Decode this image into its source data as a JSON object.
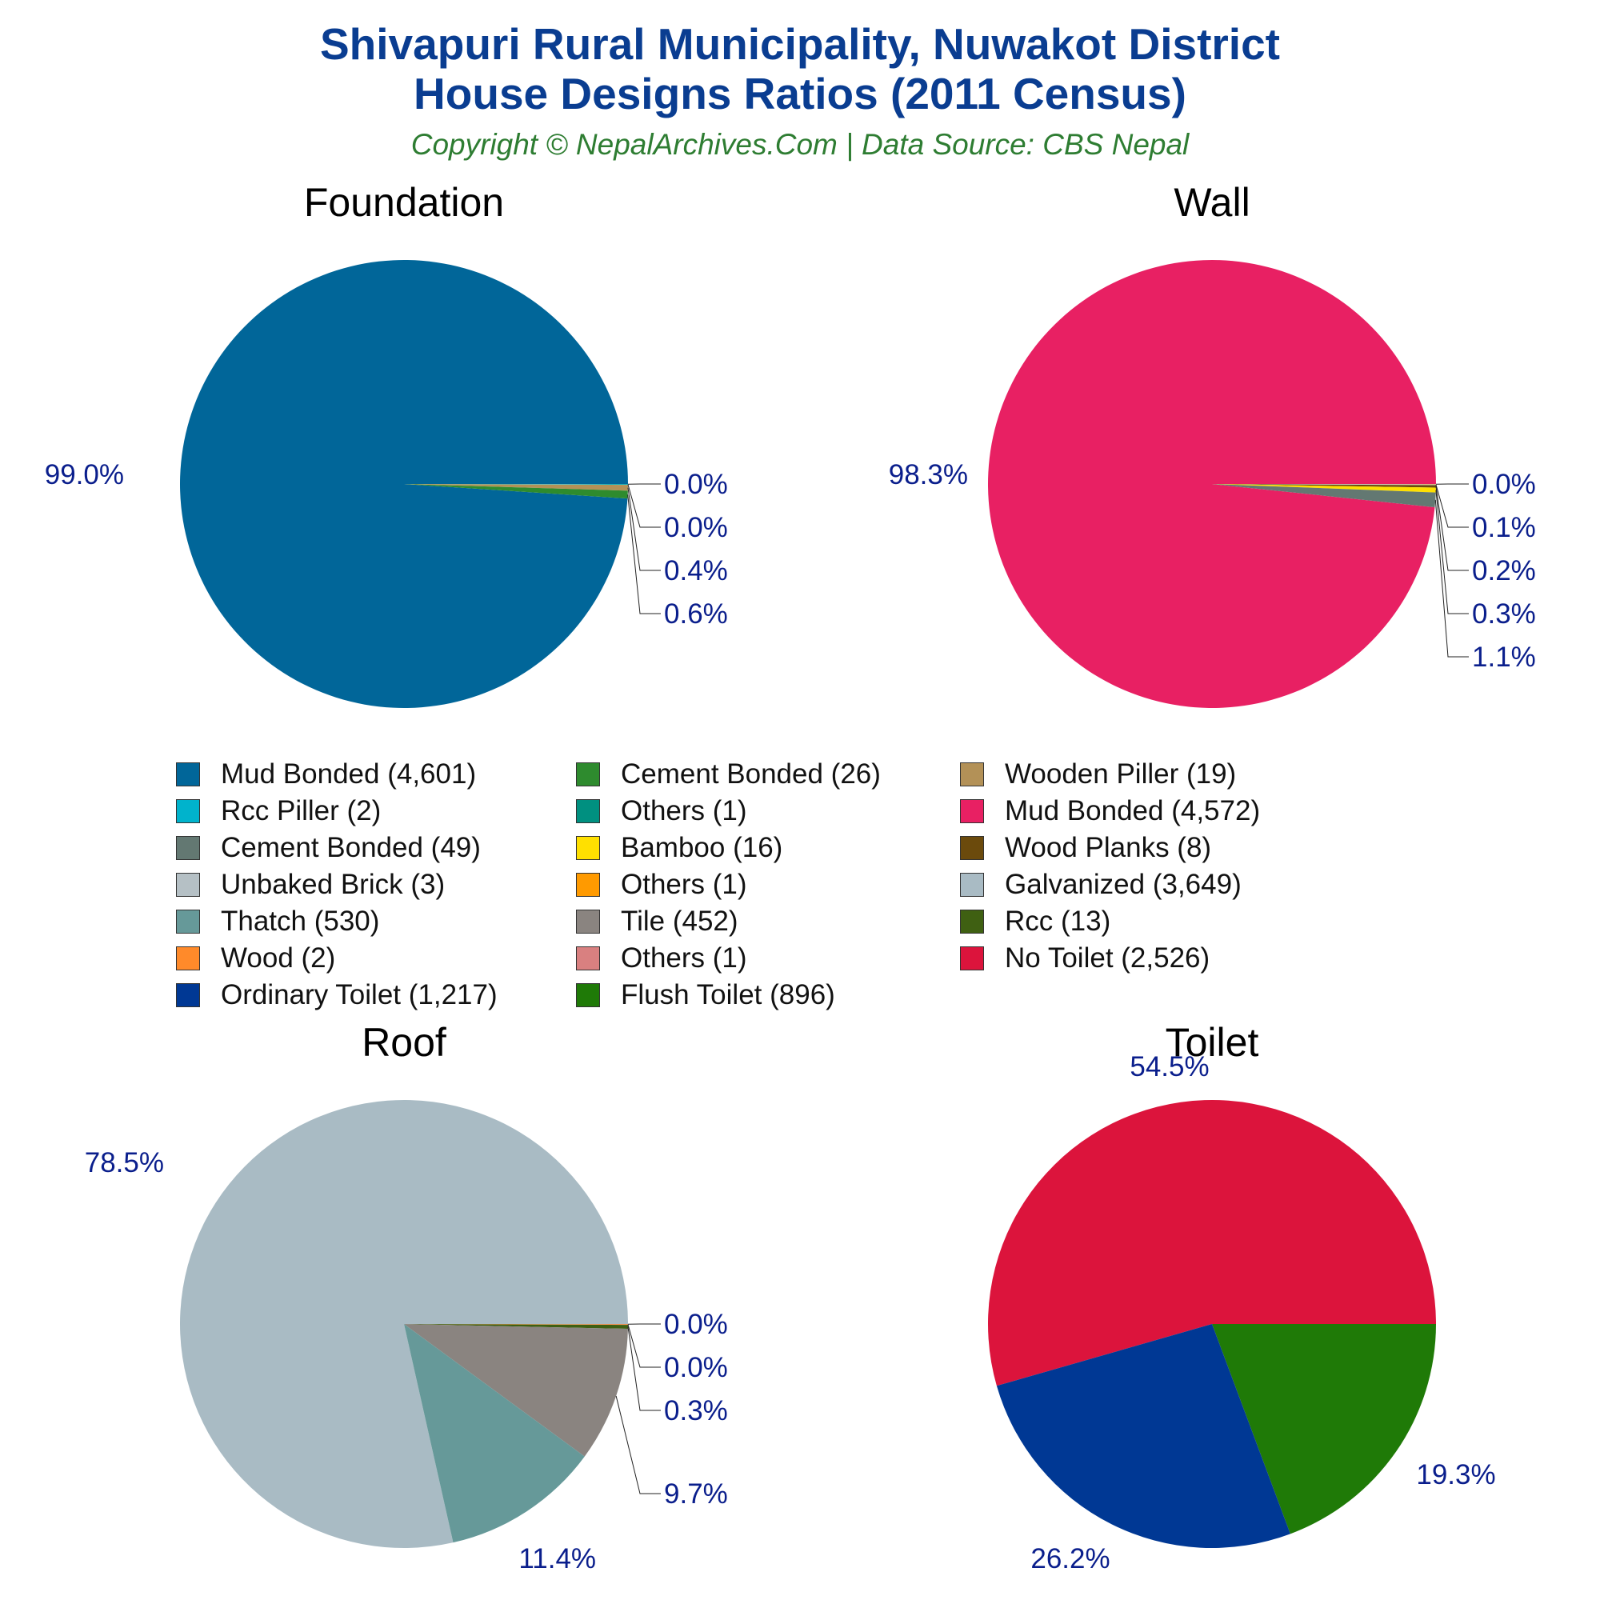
{
  "header": {
    "title_line1": "Shivapuri Rural Municipality, Nuwakot District",
    "title_line2": "House Designs Ratios (2011 Census)",
    "subtitle": "Copyright © NepalArchives.Com | Data Source: CBS Nepal"
  },
  "legend": [
    {
      "label": "Mud Bonded (4,601)",
      "color": "#016699"
    },
    {
      "label": "Cement Bonded (26)",
      "color": "#2e8b2e"
    },
    {
      "label": "Wooden Piller (19)",
      "color": "#b39157"
    },
    {
      "label": "Rcc Piller (2)",
      "color": "#00b3cc"
    },
    {
      "label": "Others (1)",
      "color": "#009080"
    },
    {
      "label": "Mud Bonded (4,572)",
      "color": "#e82063"
    },
    {
      "label": "Cement Bonded (49)",
      "color": "#637872"
    },
    {
      "label": "Bamboo (16)",
      "color": "#ffe000"
    },
    {
      "label": "Wood Planks (8)",
      "color": "#6b4a0c"
    },
    {
      "label": "Unbaked Brick (3)",
      "color": "#b5c0c5"
    },
    {
      "label": "Others (1)",
      "color": "#ff9a00"
    },
    {
      "label": "Galvanized (3,649)",
      "color": "#a9bbc4"
    },
    {
      "label": "Thatch (530)",
      "color": "#669999"
    },
    {
      "label": "Tile (452)",
      "color": "#8a8480"
    },
    {
      "label": "Rcc (13)",
      "color": "#3f6012"
    },
    {
      "label": "Wood (2)",
      "color": "#ff8a2a"
    },
    {
      "label": "Others (1)",
      "color": "#d98080"
    },
    {
      "label": "No Toilet (2,526)",
      "color": "#dc143c"
    },
    {
      "label": "Ordinary Toilet (1,217)",
      "color": "#003894"
    },
    {
      "label": "Flush Toilet (896)",
      "color": "#1f7a07"
    }
  ],
  "chart_data": [
    {
      "type": "pie",
      "title": "Foundation",
      "slices": [
        {
          "label": "Mud Bonded",
          "value": 4601,
          "percent_label": "99.0%",
          "color": "#016699"
        },
        {
          "label": "Cement Bonded",
          "value": 26,
          "percent_label": "0.6%",
          "color": "#2e8b2e"
        },
        {
          "label": "Wooden Piller",
          "value": 19,
          "percent_label": "0.4%",
          "color": "#b39157"
        },
        {
          "label": "Rcc Piller",
          "value": 2,
          "percent_label": "0.0%",
          "color": "#00b3cc"
        },
        {
          "label": "Others",
          "value": 1,
          "percent_label": "0.0%",
          "color": "#009080"
        }
      ]
    },
    {
      "type": "pie",
      "title": "Wall",
      "slices": [
        {
          "label": "Mud Bonded",
          "value": 4572,
          "percent_label": "98.3%",
          "color": "#e82063"
        },
        {
          "label": "Cement Bonded",
          "value": 49,
          "percent_label": "1.1%",
          "color": "#637872"
        },
        {
          "label": "Bamboo",
          "value": 16,
          "percent_label": "0.3%",
          "color": "#ffe000"
        },
        {
          "label": "Wood Planks",
          "value": 8,
          "percent_label": "0.2%",
          "color": "#6b4a0c"
        },
        {
          "label": "Unbaked Brick",
          "value": 3,
          "percent_label": "0.1%",
          "color": "#b5c0c5"
        },
        {
          "label": "Others",
          "value": 1,
          "percent_label": "0.0%",
          "color": "#ff9a00"
        }
      ]
    },
    {
      "type": "pie",
      "title": "Roof",
      "slices": [
        {
          "label": "Galvanized",
          "value": 3649,
          "percent_label": "78.5%",
          "color": "#a9bbc4"
        },
        {
          "label": "Thatch",
          "value": 530,
          "percent_label": "11.4%",
          "color": "#669999"
        },
        {
          "label": "Tile",
          "value": 452,
          "percent_label": "9.7%",
          "color": "#8a8480"
        },
        {
          "label": "Rcc",
          "value": 13,
          "percent_label": "0.3%",
          "color": "#3f6012"
        },
        {
          "label": "Wood",
          "value": 2,
          "percent_label": "0.0%",
          "color": "#ff8a2a"
        },
        {
          "label": "Others",
          "value": 1,
          "percent_label": "0.0%",
          "color": "#d98080"
        }
      ]
    },
    {
      "type": "pie",
      "title": "Toilet",
      "slices": [
        {
          "label": "No Toilet",
          "value": 2526,
          "percent_label": "54.5%",
          "color": "#dc143c"
        },
        {
          "label": "Ordinary Toilet",
          "value": 1217,
          "percent_label": "26.2%",
          "color": "#003894"
        },
        {
          "label": "Flush Toilet",
          "value": 896,
          "percent_label": "19.3%",
          "color": "#1f7a07"
        }
      ]
    }
  ]
}
